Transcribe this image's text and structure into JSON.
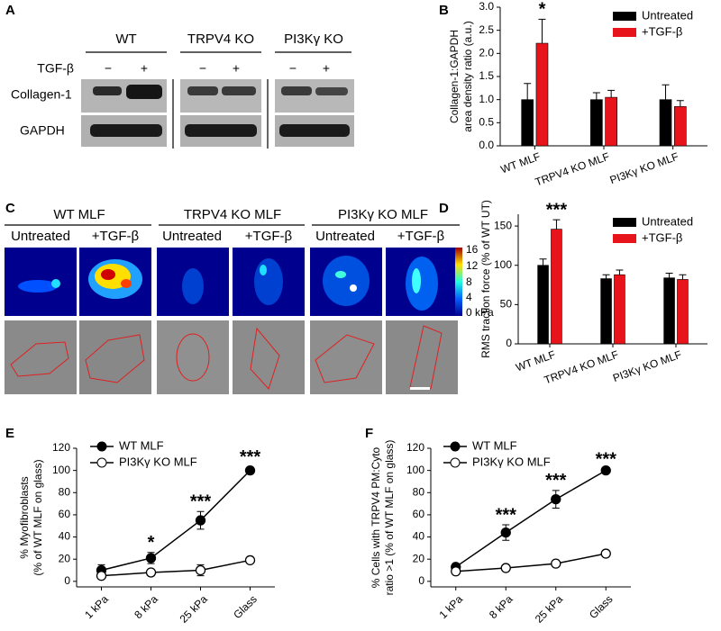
{
  "panel_a": {
    "letter": "A",
    "groups": [
      "WT",
      "TRPV4 KO",
      "PI3Kγ KO"
    ],
    "treatment": "TGF-β",
    "minus": "−",
    "plus": "+",
    "rows": [
      "Collagen-1",
      "GAPDH"
    ]
  },
  "panel_c": {
    "letter": "C",
    "groups": [
      "WT MLF",
      "TRPV4 KO MLF",
      "PI3Kγ KO MLF"
    ],
    "conditions": [
      "Untreated",
      "+TGF-β"
    ],
    "colorbar": [
      "16",
      "12",
      "8",
      "4",
      "0 kPa"
    ]
  },
  "chart_data": [
    {
      "type": "bar",
      "label": "B",
      "ylabel": [
        "Collagen-1:GAPDH",
        "area density ratio (a.u.)"
      ],
      "categories": [
        "WT MLF",
        "TRPV4 KO MLF",
        "PI3Kγ KO MLF"
      ],
      "series": [
        {
          "name": "Untreated",
          "color": "#000000",
          "values": [
            1.0,
            1.0,
            1.0
          ],
          "errors": [
            0.35,
            0.15,
            0.32
          ]
        },
        {
          "name": "+TGF-β",
          "color": "#e8141b",
          "values": [
            2.22,
            1.05,
            0.85
          ],
          "errors": [
            0.52,
            0.15,
            0.13
          ]
        }
      ],
      "ylim": [
        0,
        3.0
      ],
      "yticks": [
        {
          "value": 0,
          "label": "0.0"
        },
        {
          "value": 0.5,
          "label": "0.5"
        },
        {
          "value": 1,
          "label": "1.0"
        },
        {
          "value": 1.5,
          "label": "1.5"
        },
        {
          "value": 2,
          "label": "2.0"
        },
        {
          "value": 2.5,
          "label": "2.5"
        },
        {
          "value": 3,
          "label": "3.0"
        }
      ],
      "annotations": [
        {
          "text": "*",
          "x": "WT MLF"
        }
      ]
    },
    {
      "type": "bar",
      "label": "D",
      "ylabel": [
        "RMS traction force (% of WT UT)"
      ],
      "categories": [
        "WT MLF",
        "TRPV4 KO MLF",
        "PI3Kγ KO MLF"
      ],
      "series": [
        {
          "name": "Untreated",
          "color": "#000000",
          "values": [
            100,
            83,
            84
          ],
          "errors": [
            8,
            5,
            6
          ]
        },
        {
          "name": "+TGF-β",
          "color": "#e8141b",
          "values": [
            146,
            88,
            82
          ],
          "errors": [
            12,
            6,
            6
          ]
        }
      ],
      "ylim": [
        0,
        165
      ],
      "yticks": [
        0,
        50,
        100,
        150
      ],
      "annotations": [
        {
          "text": "***",
          "x": "WT MLF"
        }
      ]
    },
    {
      "type": "line",
      "label": "E",
      "ylabel": [
        "% Myofibroblasts",
        "(% of WT MLF on glass)"
      ],
      "categories": [
        "1 kPa",
        "8 kPa",
        "25 kPa",
        "Glass"
      ],
      "series": [
        {
          "name": "WT MLF",
          "color": "#000000",
          "marker_fill": "#000000",
          "values": [
            10,
            21,
            55,
            100
          ],
          "errors": [
            5,
            5,
            8,
            3
          ]
        },
        {
          "name": "PI3Kγ KO MLF",
          "color": "#000000",
          "marker_fill": "#ffffff",
          "values": [
            5,
            8,
            10,
            19
          ],
          "errors": [
            2,
            1,
            5,
            1
          ]
        }
      ],
      "ylim": [
        -5,
        120
      ],
      "yticks": [
        0,
        20,
        40,
        60,
        80,
        100,
        120
      ],
      "annotations": [
        {
          "text": "*",
          "x": "8 kPa"
        },
        {
          "text": "***",
          "x": "25 kPa"
        },
        {
          "text": "***",
          "x": "Glass"
        }
      ]
    },
    {
      "type": "line",
      "label": "F",
      "ylabel": [
        "% Cells with TRPV4 PM:Cyto",
        "ratio >1 (% of WT MLF on glass)"
      ],
      "categories": [
        "1 kPa",
        "8 kPa",
        "25 kPa",
        "Glass"
      ],
      "series": [
        {
          "name": "WT MLF",
          "color": "#000000",
          "marker_fill": "#000000",
          "values": [
            13,
            44,
            74,
            100
          ],
          "errors": [
            3,
            7,
            8,
            1
          ]
        },
        {
          "name": "PI3Kγ KO MLF",
          "color": "#000000",
          "marker_fill": "#ffffff",
          "values": [
            9,
            12,
            16,
            25
          ],
          "errors": [
            1,
            1,
            1,
            1
          ]
        }
      ],
      "ylim": [
        -5,
        120
      ],
      "yticks": [
        0,
        20,
        40,
        60,
        80,
        100,
        120
      ],
      "annotations": [
        {
          "text": "***",
          "x": "8 kPa"
        },
        {
          "text": "***",
          "x": "25 kPa"
        },
        {
          "text": "***",
          "x": "Glass"
        }
      ]
    }
  ]
}
